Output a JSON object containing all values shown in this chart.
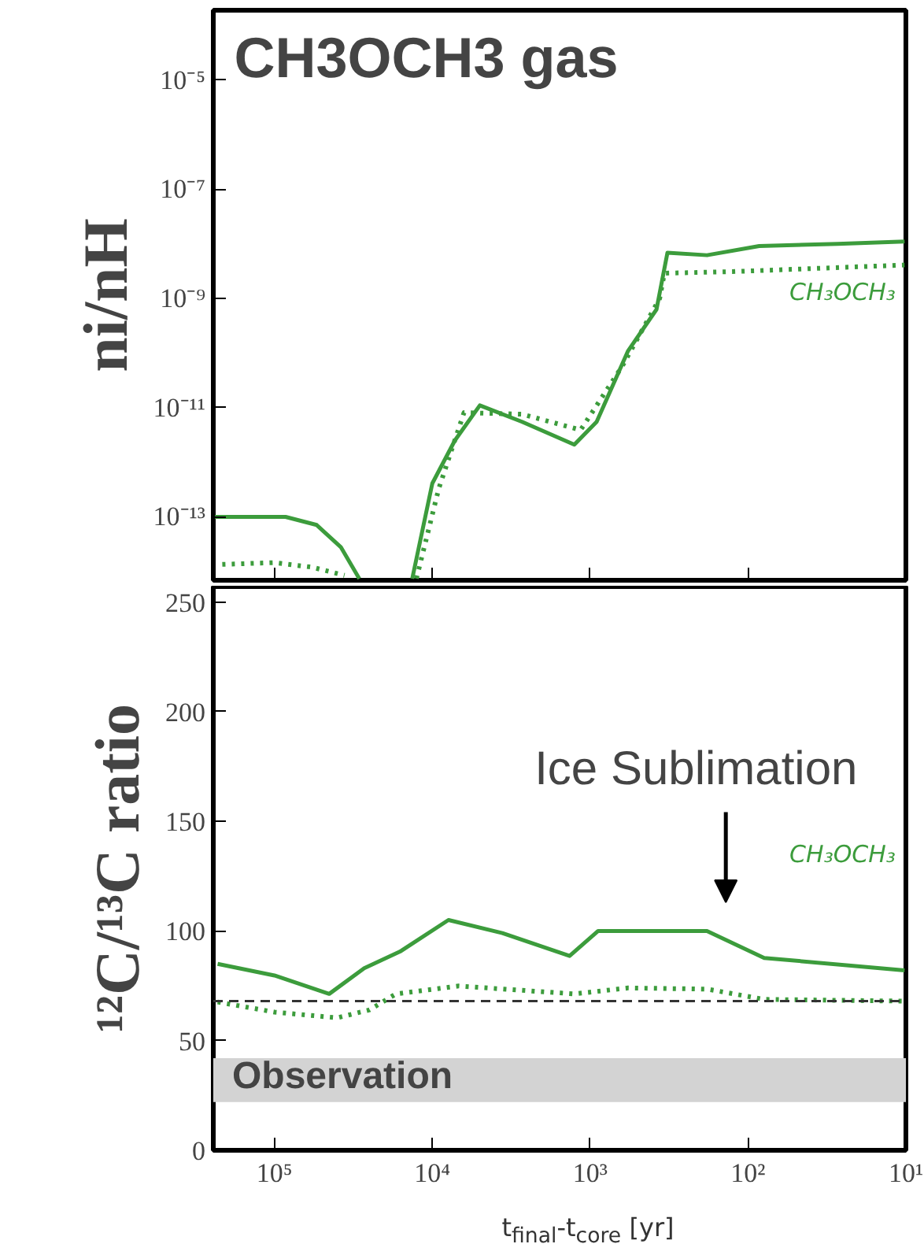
{
  "chart_data": [
    {
      "type": "line",
      "title": "CH3OCH3 gas",
      "ylabel": "ni/nH",
      "log": "xy",
      "tick_labels": "y",
      "xlim": [
        244000,
        10
      ],
      "ylim": [
        6.9e-15,
        0.00019
      ],
      "xticks": [
        {
          "value": 100000,
          "label": null
        },
        {
          "value": 10000,
          "label": null
        },
        {
          "value": 1000,
          "label": null
        },
        {
          "value": 100,
          "label": null
        },
        {
          "value": 10,
          "label": null
        }
      ],
      "yticks": [
        {
          "value": 1e-05,
          "label": "10⁻⁵"
        },
        {
          "value": 1e-07,
          "label": "10⁻⁷"
        },
        {
          "value": 1e-09,
          "label": "10⁻⁹"
        },
        {
          "value": 1e-11,
          "label": "10⁻¹¹"
        },
        {
          "value": 1e-13,
          "label": "10⁻¹³"
        }
      ],
      "series": [
        {
          "name": "CH₃OCH₃",
          "color": "#3c9c3c",
          "line_style": "solid",
          "x": [
            238000,
            85000,
            54000,
            38000,
            29000,
            20000,
            13400,
            10000,
            7200,
            5000,
            2700,
            1260,
            910,
            575,
            380,
            324,
            182,
            85,
            27,
            10.2
          ],
          "values": [
            1e-13,
            1e-13,
            7.1e-14,
            2.8e-14,
            7.4e-15,
            null,
            7.4e-15,
            4.1e-13,
            2.5e-12,
            1.1e-11,
            5.5e-12,
            2.1e-12,
            5.5e-12,
            1.1e-10,
            6.3e-10,
            6.9e-09,
            6.2e-09,
            9.1e-09,
            1e-08,
            1.1e-08
          ]
        },
        {
          "color": "#3c9c3c",
          "line_style": "dotted",
          "x": [
            214000,
            100000,
            58000,
            36000,
            20000,
            12600,
            9100,
            6300,
            2700,
            1150,
            630,
            363,
            339,
            126,
            10.2
          ],
          "values": [
            1.35e-14,
            1.45e-14,
            1.2e-14,
            8.5e-15,
            null,
            7.4e-15,
            3.3e-13,
            8.1e-12,
            7.6e-12,
            3.9e-12,
            5.6e-11,
            1e-09,
            2.9e-09,
            3.1e-09,
            4.1e-09
          ]
        }
      ]
    },
    {
      "type": "line",
      "xlabel": "t$_{final}$-t$_{core}$ [yr]",
      "ylabel": "¹²C/¹³C ratio",
      "log": "x",
      "xlim": [
        244000,
        10
      ],
      "ylim": [
        0,
        257
      ],
      "xticks": [
        {
          "value": 100000,
          "label": "10⁵"
        },
        {
          "value": 10000,
          "label": "10⁴"
        },
        {
          "value": 1000,
          "label": "10³"
        },
        {
          "value": 100,
          "label": "10²"
        },
        {
          "value": 10,
          "label": "10¹"
        }
      ],
      "yticks": [
        0,
        50,
        100,
        150,
        200,
        250
      ],
      "series": [
        {
          "name": "CH₃OCH₃",
          "color": "#3c9c3c",
          "line_style": "solid",
          "x": [
            229000,
            100000,
            45000,
            27000,
            16000,
            7900,
            3600,
            1350,
            890,
            316,
            182,
            79,
            10.2
          ],
          "values": [
            85,
            79.7,
            71.3,
            83,
            90.6,
            105,
            99,
            88.6,
            100,
            100,
            100,
            87.7,
            82
          ]
        },
        {
          "color": "#3c9c3c",
          "line_style": "dotted",
          "x": [
            229000,
            100000,
            40000,
            25000,
            17000,
            6800,
            1260,
            575,
            182,
            79,
            10.2
          ],
          "values": [
            67.6,
            63,
            60.4,
            64,
            71.3,
            74.9,
            71.3,
            74,
            73.5,
            68.8,
            68
          ]
        }
      ],
      "ref_lines": [
        {
          "axis": "y",
          "value": 68,
          "color": "#333333",
          "line_style": "dashed"
        }
      ],
      "bands": [
        {
          "axis": "y",
          "from": 22,
          "to": 42,
          "label": "Observation",
          "color": "#d3d3d3"
        }
      ],
      "annotations": [
        "Ice Sublimation"
      ]
    }
  ]
}
